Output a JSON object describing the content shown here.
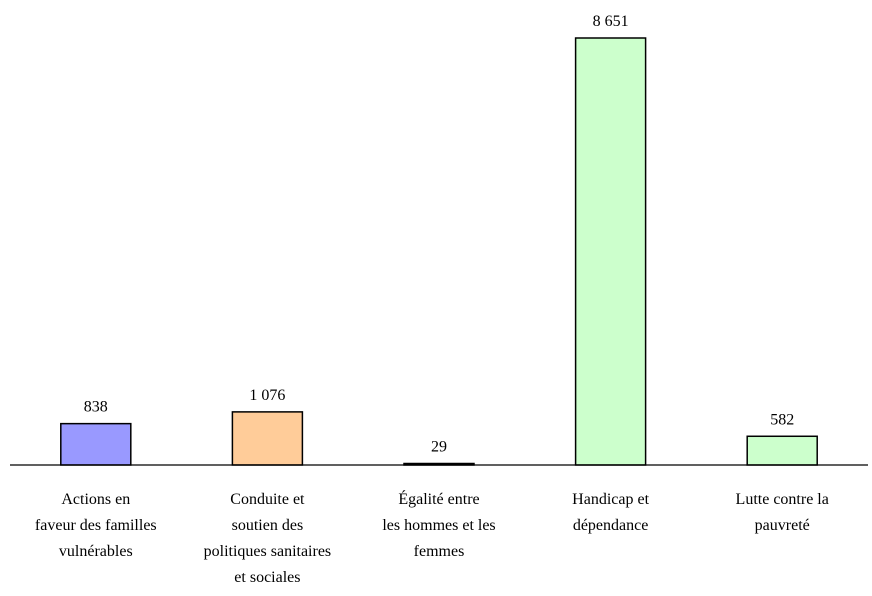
{
  "chart_data": {
    "type": "bar",
    "title": "",
    "xlabel": "",
    "ylabel": "",
    "ylim": [
      0,
      8651
    ],
    "grid": false,
    "legend": "none",
    "categories": [
      [
        "Actions en",
        "faveur des familles",
        "vulnérables"
      ],
      [
        "Conduite et",
        "soutien des",
        "politiques sanitaires",
        "et sociales"
      ],
      [
        "Égalité entre",
        "les hommes et les",
        "femmes"
      ],
      [
        "Handicap et",
        "dépendance"
      ],
      [
        "Lutte contre la",
        "pauvreté"
      ]
    ],
    "values": [
      838,
      1076,
      29,
      8651,
      582
    ],
    "value_labels": [
      "838",
      "1 076",
      "29",
      "8 651",
      "582"
    ],
    "colors": [
      "#9999ff",
      "#ffcc99",
      "#ccffcc",
      "#ccffcc",
      "#ccffcc"
    ]
  }
}
